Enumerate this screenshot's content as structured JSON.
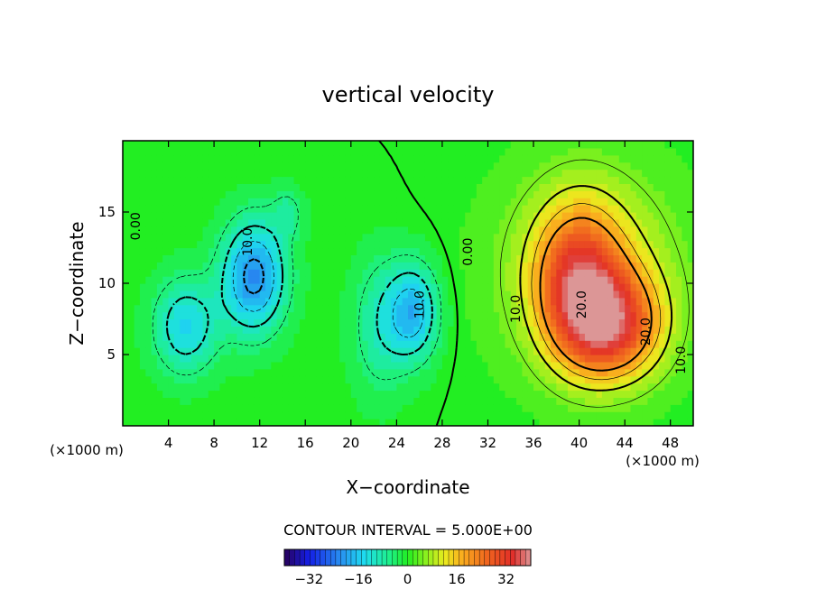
{
  "chart_data": {
    "type": "heatmap",
    "title": "vertical velocity",
    "xlabel": "X−coordinate",
    "ylabel": "Z−coordinate",
    "x_unit": "(×1000 m)",
    "y_unit": "(×1000 m)",
    "xlim": [
      0,
      50
    ],
    "ylim": [
      0,
      20
    ],
    "x_ticks": [
      4,
      8,
      12,
      16,
      20,
      24,
      28,
      32,
      36,
      40,
      44,
      48
    ],
    "y_ticks": [
      5,
      10,
      15
    ],
    "contour_interval_text": "CONTOUR INTERVAL = 5.000E+00",
    "contour_interval": 5,
    "grid": false,
    "contour_labels": [
      {
        "text": "0.00",
        "x": 1.5,
        "y": 14
      },
      {
        "text": "10.0",
        "x": 11.3,
        "y": 12.9
      },
      {
        "text": "0.00",
        "x": 30.6,
        "y": 12.2
      },
      {
        "text": "10.0",
        "x": 26.4,
        "y": 8.5
      },
      {
        "text": "10.0",
        "x": 34.8,
        "y": 8.2
      },
      {
        "text": "20.0",
        "x": 40.6,
        "y": 8.5
      },
      {
        "text": "20.0",
        "x": 46.2,
        "y": 6.6
      },
      {
        "text": "10.0",
        "x": 49.3,
        "y": 4.6
      }
    ],
    "field_features": [
      {
        "type": "min",
        "x": 11.5,
        "y": 10.5,
        "value": -22,
        "sx": 2.0,
        "sy": 2.8
      },
      {
        "type": "min",
        "x": 5.5,
        "y": 7.0,
        "value": -14,
        "sx": 2.0,
        "sy": 2.4
      },
      {
        "type": "min",
        "x": 25.5,
        "y": 8.0,
        "value": -17,
        "sx": 1.6,
        "sy": 2.4
      },
      {
        "type": "min",
        "x": 22.5,
        "y": 7.0,
        "value": -8,
        "sx": 1.8,
        "sy": 3.5
      },
      {
        "type": "min",
        "x": 14.5,
        "y": 15.0,
        "value": -6,
        "sx": 1.0,
        "sy": 1.2
      },
      {
        "type": "max",
        "x": 40.0,
        "y": 10.0,
        "value": 24,
        "sx": 2.6,
        "sy": 3.6
      },
      {
        "type": "max",
        "x": 43.0,
        "y": 7.0,
        "value": 25,
        "sx": 3.0,
        "sy": 2.6
      },
      {
        "type": "max",
        "x": 41.0,
        "y": 11.0,
        "value": 12,
        "sx": 5.5,
        "sy": 5.0
      }
    ],
    "colorbar": {
      "ticks": [
        -32,
        -16,
        0,
        16,
        32
      ],
      "tick_labels": [
        "−32",
        "−16",
        "0",
        "16",
        "32"
      ],
      "range": [
        -40,
        40
      ],
      "n_bins": 48
    },
    "colors": {
      "background_field": "#22ee22",
      "axis": "#000000"
    }
  }
}
